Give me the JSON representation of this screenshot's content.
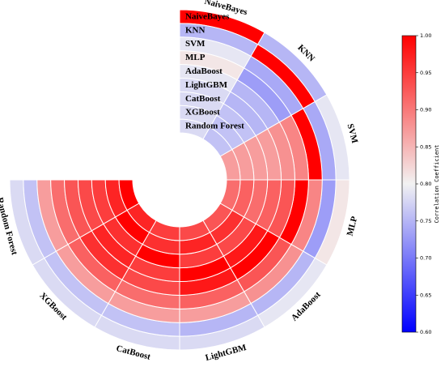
{
  "chart_data": {
    "type": "heatmap",
    "layout": "circular",
    "models": [
      "NaiveBayes",
      "KNN",
      "SVM",
      "MLP",
      "AdaBoost",
      "LightGBM",
      "CatBoost",
      "XGBoost",
      "Random Forest"
    ],
    "matrix": [
      [
        1.0,
        0.75,
        0.79,
        0.81,
        0.79,
        0.78,
        0.78,
        0.78,
        0.78
      ],
      [
        0.75,
        1.0,
        0.74,
        0.73,
        0.75,
        0.75,
        0.76,
        0.76,
        0.76
      ],
      [
        0.79,
        0.74,
        1.0,
        0.89,
        0.88,
        0.87,
        0.87,
        0.87,
        0.87
      ],
      [
        0.81,
        0.73,
        0.89,
        1.0,
        0.93,
        0.92,
        0.91,
        0.92,
        0.91
      ],
      [
        0.79,
        0.75,
        0.88,
        0.93,
        1.0,
        0.98,
        0.94,
        0.96,
        0.93
      ],
      [
        0.78,
        0.75,
        0.87,
        0.92,
        0.98,
        1.0,
        0.95,
        0.97,
        0.94
      ],
      [
        0.78,
        0.76,
        0.87,
        0.91,
        0.94,
        0.95,
        1.0,
        0.96,
        0.95
      ],
      [
        0.78,
        0.76,
        0.87,
        0.92,
        0.96,
        0.97,
        0.96,
        1.0,
        0.97
      ],
      [
        0.78,
        0.76,
        0.87,
        0.91,
        0.93,
        0.94,
        0.95,
        0.97,
        1.0
      ]
    ],
    "colorbar": {
      "label": "Correlation Coefficient",
      "min": 0.6,
      "max": 1.0,
      "ticks": [
        "1.00",
        "0.95",
        "0.90",
        "0.85",
        "0.80",
        "0.75",
        "0.70",
        "0.65",
        "0.60"
      ],
      "colors": {
        "low": "#0000ff",
        "mid": "#f2f2f2",
        "high": "#ff0000"
      }
    },
    "legend_position": "right"
  }
}
